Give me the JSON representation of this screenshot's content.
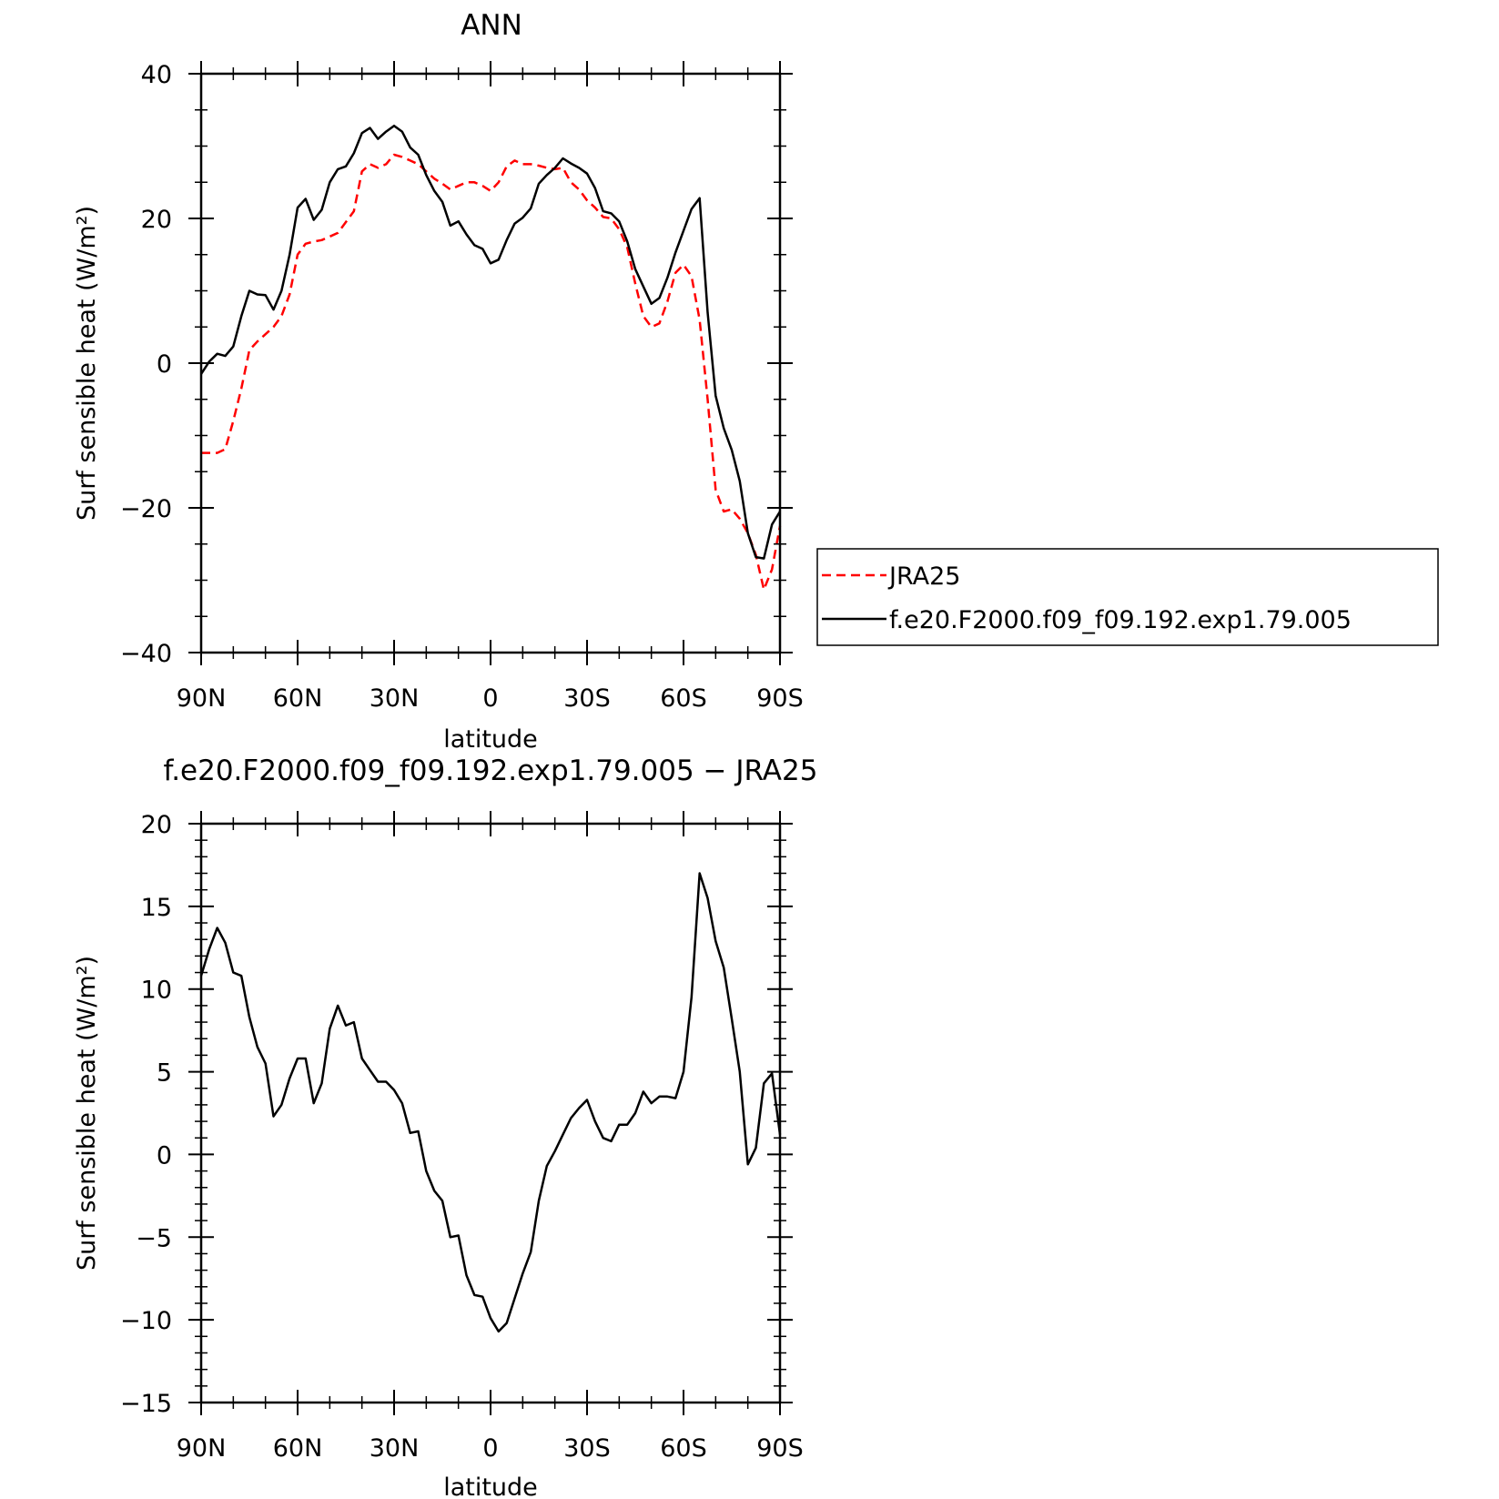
{
  "chart_data": [
    {
      "type": "line",
      "title": "ANN",
      "xlabel": "latitude",
      "ylabel": "Surf sensible heat (W/m²)",
      "ylim": [
        -40,
        40
      ],
      "xlim": [
        90,
        -90
      ],
      "x_tick_values": [
        90,
        60,
        30,
        0,
        -30,
        -60,
        -90
      ],
      "x_tick_labels": [
        "90N",
        "60N",
        "30N",
        "0",
        "30S",
        "60S",
        "90S"
      ],
      "y_ticks": [
        -40,
        -20,
        0,
        20,
        40
      ],
      "y_tick_labels": [
        "−40",
        "−20",
        "0",
        "20",
        "40"
      ],
      "grid": false,
      "legend_position": "right",
      "series": [
        {
          "name": "JRA25",
          "color": "#ff0000",
          "style": "dashed",
          "points": [
            [
              90,
              -12.4
            ],
            [
              87.5,
              -12.4
            ],
            [
              85,
              -12.4
            ],
            [
              82.5,
              -11.9
            ],
            [
              80,
              -8.0
            ],
            [
              77.5,
              -3.5
            ],
            [
              75,
              1.8
            ],
            [
              72.5,
              3.0
            ],
            [
              70,
              4.0
            ],
            [
              67.5,
              5.0
            ],
            [
              65,
              6.5
            ],
            [
              62.5,
              9.5
            ],
            [
              60,
              15.0
            ],
            [
              57.5,
              16.5
            ],
            [
              55,
              16.8
            ],
            [
              52.5,
              17.0
            ],
            [
              50,
              17.5
            ],
            [
              47.5,
              18.0
            ],
            [
              45,
              19.5
            ],
            [
              42.5,
              21.0
            ],
            [
              40,
              26.5
            ],
            [
              37.5,
              27.5
            ],
            [
              35,
              27.0
            ],
            [
              32.5,
              27.5
            ],
            [
              30,
              28.8
            ],
            [
              27.5,
              28.5
            ],
            [
              25,
              28.0
            ],
            [
              22.5,
              27.5
            ],
            [
              20,
              26.5
            ],
            [
              17.5,
              25.5
            ],
            [
              15,
              24.8
            ],
            [
              12.5,
              24.0
            ],
            [
              10,
              24.5
            ],
            [
              7.5,
              25.0
            ],
            [
              5,
              25.0
            ],
            [
              2.5,
              24.5
            ],
            [
              0,
              23.8
            ],
            [
              -2.5,
              25.0
            ],
            [
              -5,
              27.2
            ],
            [
              -7.5,
              28.0
            ],
            [
              -10,
              27.5
            ],
            [
              -12.5,
              27.5
            ],
            [
              -15,
              27.3
            ],
            [
              -17.5,
              27.0
            ],
            [
              -20,
              26.8
            ],
            [
              -22.5,
              27.0
            ],
            [
              -25,
              25.0
            ],
            [
              -27.5,
              24.0
            ],
            [
              -30,
              22.5
            ],
            [
              -32.5,
              21.5
            ],
            [
              -35,
              20.2
            ],
            [
              -37.5,
              20.0
            ],
            [
              -40,
              18.5
            ],
            [
              -42.5,
              16.0
            ],
            [
              -45,
              11.0
            ],
            [
              -47.5,
              6.5
            ],
            [
              -50,
              5.0
            ],
            [
              -52.5,
              5.5
            ],
            [
              -55,
              8.5
            ],
            [
              -57.5,
              12.5
            ],
            [
              -60,
              13.6
            ],
            [
              -62.5,
              12.0
            ],
            [
              -65,
              6.0
            ],
            [
              -67.5,
              -5.0
            ],
            [
              -70,
              -17.5
            ],
            [
              -72.5,
              -20.5
            ],
            [
              -75,
              -20.2
            ],
            [
              -77.5,
              -21.5
            ],
            [
              -80,
              -23.5
            ],
            [
              -82.5,
              -26.5
            ],
            [
              -85,
              -31.3
            ],
            [
              -87.5,
              -28.5
            ],
            [
              -90,
              -22.5
            ]
          ]
        },
        {
          "name": "f.e20.F2000.f09_f09.192.exp1.79.005",
          "color": "#000000",
          "style": "solid",
          "points": [
            [
              90,
              -1.5
            ],
            [
              87.5,
              0.2
            ],
            [
              85,
              1.3
            ],
            [
              82.5,
              1.0
            ],
            [
              80,
              2.3
            ],
            [
              77.5,
              6.5
            ],
            [
              75,
              10.0
            ],
            [
              72.5,
              9.5
            ],
            [
              70,
              9.4
            ],
            [
              67.5,
              7.4
            ],
            [
              65,
              10.0
            ],
            [
              62.5,
              15.0
            ],
            [
              60,
              21.5
            ],
            [
              57.5,
              22.7
            ],
            [
              55,
              19.8
            ],
            [
              52.5,
              21.2
            ],
            [
              50,
              25.0
            ],
            [
              47.5,
              26.8
            ],
            [
              45,
              27.2
            ],
            [
              42.5,
              29.0
            ],
            [
              40,
              31.8
            ],
            [
              37.5,
              32.5
            ],
            [
              35,
              31.0
            ],
            [
              32.5,
              32.0
            ],
            [
              30,
              32.8
            ],
            [
              27.5,
              32.0
            ],
            [
              25,
              29.8
            ],
            [
              22.5,
              28.8
            ],
            [
              20,
              26.0
            ],
            [
              17.5,
              23.8
            ],
            [
              15,
              22.3
            ],
            [
              12.5,
              19.0
            ],
            [
              10,
              19.6
            ],
            [
              7.5,
              17.8
            ],
            [
              5,
              16.3
            ],
            [
              2.5,
              15.8
            ],
            [
              0,
              13.8
            ],
            [
              -2.5,
              14.3
            ],
            [
              -5,
              17.0
            ],
            [
              -7.5,
              19.3
            ],
            [
              -10,
              20.1
            ],
            [
              -12.5,
              21.4
            ],
            [
              -15,
              24.8
            ],
            [
              -17.5,
              26.0
            ],
            [
              -20,
              27.0
            ],
            [
              -22.5,
              28.3
            ],
            [
              -25,
              27.6
            ],
            [
              -27.5,
              27.0
            ],
            [
              -30,
              26.2
            ],
            [
              -32.5,
              24.2
            ],
            [
              -35,
              21.0
            ],
            [
              -37.5,
              20.7
            ],
            [
              -40,
              19.6
            ],
            [
              -42.5,
              16.8
            ],
            [
              -45,
              13.0
            ],
            [
              -47.5,
              10.6
            ],
            [
              -50,
              8.2
            ],
            [
              -52.5,
              9.0
            ],
            [
              -55,
              11.8
            ],
            [
              -57.5,
              15.3
            ],
            [
              -60,
              18.3
            ],
            [
              -62.5,
              21.3
            ],
            [
              -65,
              22.8
            ],
            [
              -67.5,
              7.0
            ],
            [
              -70,
              -4.5
            ],
            [
              -72.5,
              -9.0
            ],
            [
              -75,
              -12.0
            ],
            [
              -77.5,
              -16.3
            ],
            [
              -80,
              -23.5
            ],
            [
              -82.5,
              -26.8
            ],
            [
              -85,
              -27.0
            ],
            [
              -87.5,
              -22.3
            ],
            [
              -90,
              -20.5
            ]
          ]
        }
      ]
    },
    {
      "type": "line",
      "title": "f.e20.F2000.f09_f09.192.exp1.79.005 − JRA25",
      "xlabel": "latitude",
      "ylabel": "Surf sensible heat (W/m²)",
      "ylim": [
        -15,
        20
      ],
      "xlim": [
        90,
        -90
      ],
      "x_tick_values": [
        90,
        60,
        30,
        0,
        -30,
        -60,
        -90
      ],
      "x_tick_labels": [
        "90N",
        "60N",
        "30N",
        "0",
        "30S",
        "60S",
        "90S"
      ],
      "y_ticks": [
        -15,
        -10,
        -5,
        0,
        5,
        10,
        15,
        20
      ],
      "y_tick_labels": [
        "−15",
        "−10",
        "−5",
        "0",
        "5",
        "10",
        "15",
        "20"
      ],
      "grid": false,
      "series": [
        {
          "color": "#000000",
          "style": "solid",
          "points": [
            [
              90,
              10.8
            ],
            [
              87.5,
              12.4
            ],
            [
              85,
              13.7
            ],
            [
              82.5,
              12.8
            ],
            [
              80,
              11.0
            ],
            [
              77.5,
              10.8
            ],
            [
              75,
              8.3
            ],
            [
              72.5,
              6.5
            ],
            [
              70,
              5.5
            ],
            [
              67.5,
              2.3
            ],
            [
              65,
              3.0
            ],
            [
              62.5,
              4.6
            ],
            [
              60,
              5.8
            ],
            [
              57.5,
              5.8
            ],
            [
              55,
              3.1
            ],
            [
              52.5,
              4.3
            ],
            [
              50,
              7.6
            ],
            [
              47.5,
              9.0
            ],
            [
              45,
              7.8
            ],
            [
              42.5,
              8.0
            ],
            [
              40,
              5.8
            ],
            [
              37.5,
              5.1
            ],
            [
              35,
              4.4
            ],
            [
              32.5,
              4.4
            ],
            [
              30,
              3.9
            ],
            [
              27.5,
              3.1
            ],
            [
              25,
              1.3
            ],
            [
              22.5,
              1.4
            ],
            [
              20,
              -1.0
            ],
            [
              17.5,
              -2.2
            ],
            [
              15,
              -2.8
            ],
            [
              12.5,
              -5.0
            ],
            [
              10,
              -4.9
            ],
            [
              7.5,
              -7.3
            ],
            [
              5,
              -8.5
            ],
            [
              2.5,
              -8.6
            ],
            [
              0,
              -9.9
            ],
            [
              -2.5,
              -10.7
            ],
            [
              -5,
              -10.2
            ],
            [
              -7.5,
              -8.7
            ],
            [
              -10,
              -7.2
            ],
            [
              -12.5,
              -5.9
            ],
            [
              -15,
              -2.8
            ],
            [
              -17.5,
              -0.7
            ],
            [
              -20,
              0.2
            ],
            [
              -22.5,
              1.2
            ],
            [
              -25,
              2.2
            ],
            [
              -27.5,
              2.8
            ],
            [
              -30,
              3.3
            ],
            [
              -32.5,
              2.0
            ],
            [
              -35,
              1.0
            ],
            [
              -37.5,
              0.8
            ],
            [
              -40,
              1.8
            ],
            [
              -42.5,
              1.8
            ],
            [
              -45,
              2.5
            ],
            [
              -47.5,
              3.8
            ],
            [
              -50,
              3.1
            ],
            [
              -52.5,
              3.5
            ],
            [
              -55,
              3.5
            ],
            [
              -57.5,
              3.4
            ],
            [
              -60,
              5.0
            ],
            [
              -62.5,
              9.5
            ],
            [
              -65,
              17.0
            ],
            [
              -67.5,
              15.5
            ],
            [
              -70,
              12.9
            ],
            [
              -72.5,
              11.3
            ],
            [
              -75,
              8.2
            ],
            [
              -77.5,
              5.0
            ],
            [
              -80,
              -0.6
            ],
            [
              -82.5,
              0.4
            ],
            [
              -85,
              4.3
            ],
            [
              -87.5,
              4.9
            ],
            [
              -90,
              1.2
            ]
          ]
        }
      ]
    }
  ],
  "legend": {
    "items": [
      {
        "label": "JRA25",
        "color": "#ff0000",
        "style": "dashed"
      },
      {
        "label": "f.e20.F2000.f09_f09.192.exp1.79.005",
        "color": "#000000",
        "style": "solid"
      }
    ]
  }
}
